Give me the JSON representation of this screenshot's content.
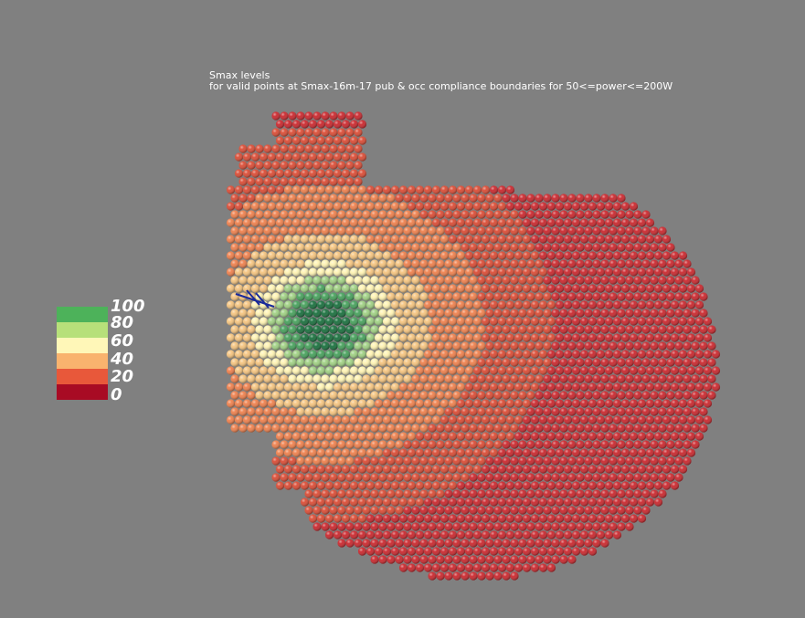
{
  "caption": {
    "line1": "Smax levels",
    "line2": "for valid points at Smax-16m-17 pub & occ compliance boundaries for 50<=power<=200W"
  },
  "legend": {
    "ticks": [
      "100",
      "80",
      "60",
      "40",
      "20",
      "0"
    ],
    "colors": [
      "#4db25a",
      "#b7e07a",
      "#fff7b8",
      "#f9b36e",
      "#e8583a",
      "#a80b24"
    ]
  },
  "colors": {
    "background": "#808080",
    "axis_marker": "#1a2a9a"
  }
}
